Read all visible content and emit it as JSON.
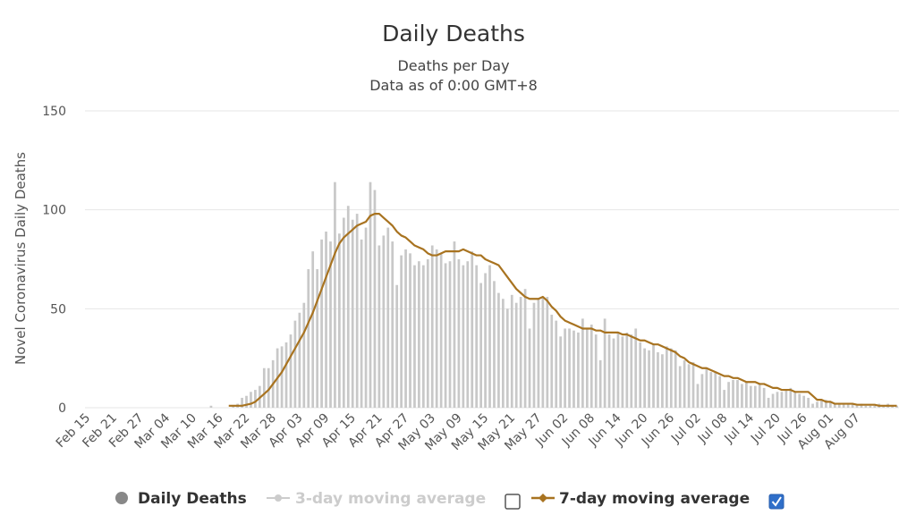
{
  "chart_data": {
    "type": "bar",
    "title": "Daily Deaths",
    "subtitle": [
      "Deaths per Day",
      "Data as of 0:00 GMT+8"
    ],
    "ylabel": "Novel Coronavirus Daily Deaths",
    "xlabel": "",
    "ylim": [
      0,
      150
    ],
    "yticks": [
      0,
      50,
      100,
      150
    ],
    "grid": true,
    "legend_position": "bottom",
    "xtick_labels": [
      "Feb 15",
      "Feb 21",
      "Feb 27",
      "Mar 04",
      "Mar 10",
      "Mar 16",
      "Mar 22",
      "Mar 28",
      "Apr 03",
      "Apr 09",
      "Apr 15",
      "Apr 21",
      "Apr 27",
      "May 03",
      "May 09",
      "May 15",
      "May 21",
      "May 27",
      "Jun 02",
      "Jun 08",
      "Jun 14",
      "Jun 20",
      "Jun 26",
      "Jul 02",
      "Jul 08",
      "Jul 14",
      "Jul 20",
      "Jul 26",
      "Aug 01",
      "Aug 07"
    ],
    "date_start": "Feb 15",
    "series": [
      {
        "name": "Daily Deaths",
        "kind": "bar",
        "color": "#c8c8c8",
        "visible": true,
        "values": [
          0,
          0,
          0,
          0,
          0,
          0,
          0,
          0,
          0,
          0,
          0,
          0,
          0,
          0,
          0,
          0,
          0,
          0,
          0,
          0,
          0,
          0,
          0,
          0,
          0,
          0,
          0,
          0,
          1,
          0,
          0,
          0,
          0,
          1,
          2,
          5,
          6,
          8,
          9,
          11,
          20,
          20,
          24,
          30,
          31,
          33,
          37,
          44,
          48,
          53,
          70,
          79,
          70,
          85,
          89,
          84,
          114,
          88,
          96,
          102,
          95,
          98,
          85,
          91,
          114,
          110,
          82,
          87,
          91,
          84,
          62,
          77,
          80,
          78,
          72,
          74,
          72,
          75,
          82,
          80,
          78,
          73,
          74,
          84,
          75,
          72,
          74,
          79,
          72,
          63,
          68,
          72,
          64,
          58,
          55,
          50,
          57,
          53,
          56,
          60,
          40,
          53,
          55,
          56,
          56,
          47,
          44,
          36,
          40,
          40,
          39,
          38,
          45,
          40,
          42,
          37,
          24,
          45,
          37,
          35,
          38,
          36,
          38,
          37,
          40,
          33,
          30,
          29,
          32,
          28,
          27,
          31,
          30,
          29,
          21,
          24,
          22,
          23,
          12,
          17,
          20,
          18,
          18,
          16,
          9,
          13,
          14,
          14,
          12,
          13,
          11,
          11,
          12,
          10,
          5,
          7,
          8,
          8,
          9,
          10,
          8,
          7,
          6,
          5,
          2,
          3,
          4,
          4,
          3,
          2,
          2,
          2,
          2,
          2,
          1,
          2,
          1,
          1,
          1,
          2,
          1,
          2,
          1,
          1
        ]
      },
      {
        "name": "3-day moving average",
        "kind": "line",
        "color": "#cccccc",
        "visible": false,
        "checked": false
      },
      {
        "name": "7-day moving average",
        "kind": "line",
        "color": "#a87320",
        "visible": true,
        "checked": true,
        "values": [
          null,
          null,
          null,
          null,
          null,
          null,
          null,
          null,
          null,
          null,
          null,
          null,
          null,
          null,
          null,
          null,
          null,
          null,
          null,
          null,
          null,
          null,
          null,
          null,
          null,
          null,
          null,
          null,
          null,
          null,
          null,
          null,
          1,
          1,
          1,
          1,
          1.5,
          2,
          3,
          5,
          7,
          9,
          12,
          15,
          18,
          22,
          26,
          30,
          34,
          38,
          43,
          48,
          54,
          60,
          66,
          72,
          78,
          83,
          86,
          88,
          90,
          92,
          93,
          94,
          97,
          98,
          98,
          96,
          94,
          92,
          89,
          87,
          86,
          84,
          82,
          81,
          80,
          78,
          77,
          77,
          78,
          79,
          79,
          79,
          79,
          80,
          79,
          78,
          77,
          77,
          75,
          74,
          73,
          72,
          69,
          66,
          63,
          60,
          58,
          56,
          55,
          55,
          55,
          56,
          54,
          51,
          49,
          46,
          44,
          43,
          42,
          41,
          40,
          40,
          40,
          39,
          39,
          38,
          38,
          38,
          38,
          37,
          37,
          36,
          35,
          34,
          34,
          33,
          32,
          32,
          31,
          30,
          29,
          28,
          26,
          25,
          23,
          22,
          21,
          20,
          20,
          19,
          18,
          17,
          16,
          16,
          15,
          15,
          14,
          13,
          13,
          13,
          12,
          12,
          11,
          10,
          10,
          9,
          9,
          9,
          8,
          8,
          8,
          8,
          6,
          4,
          4,
          3,
          3,
          2,
          2,
          2,
          2,
          2,
          1.5,
          1.5,
          1.5,
          1.5,
          1.5,
          1,
          1,
          1,
          1,
          1
        ]
      }
    ]
  },
  "legend": [
    {
      "label": "Daily Deaths",
      "icon": "circle-icon",
      "color": "#888888",
      "text_color": "#333333",
      "checkbox": null
    },
    {
      "label": "3-day moving average",
      "icon": "line-marker-icon",
      "color": "#cccccc",
      "text_color": "#cccccc",
      "checkbox": false
    },
    {
      "label": "7-day moving average",
      "icon": "line-marker-icon",
      "color": "#a87320",
      "text_color": "#333333",
      "checkbox": true
    }
  ],
  "colors": {
    "grid": "#e6e6e6",
    "axis_text": "#555555",
    "checkbox_checked": "#2f6fc9"
  }
}
